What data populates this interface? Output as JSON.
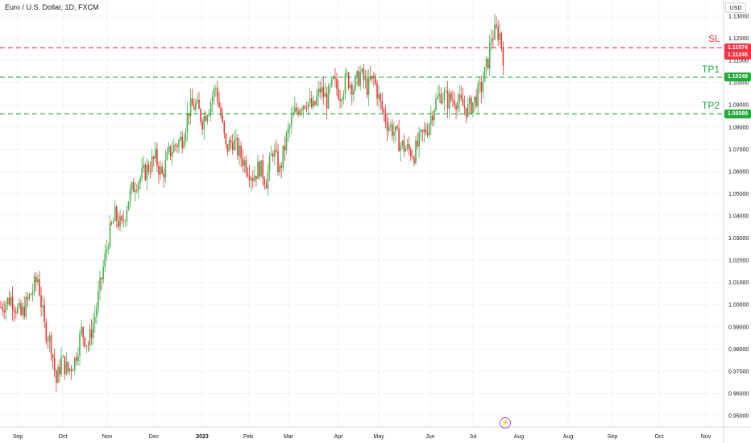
{
  "symbol_title": "Euro / U.S. Dollar, 1D, FXCM",
  "currency": "USD",
  "colors": {
    "up": "#4caf50",
    "down": "#e53935",
    "sl": "#f23645",
    "tp": "#22ab3c",
    "grid": "#f0f3fa",
    "axis_text": "#131722"
  },
  "levels": [
    {
      "name": "SL",
      "price": 1.11574,
      "badge": "1.11574",
      "color": "#f23645"
    },
    {
      "name": "TP1",
      "price": 1.10249,
      "badge": "1.10249",
      "color": "#22ab3c"
    },
    {
      "name": "TP2",
      "price": 1.08598,
      "badge": "1.08598",
      "color": "#22ab3c"
    }
  ],
  "last_price": {
    "value": 1.11245,
    "badge": "1.11245"
  },
  "bolt_icon": "lightning-icon",
  "chart_data": {
    "type": "candlestick",
    "title": "Euro / U.S. Dollar, 1D, FXCM",
    "x_ticks": [
      "Sep",
      "Oct",
      "Nov",
      "Dec",
      "2023",
      "Feb",
      "Mar",
      "Apr",
      "May",
      "Jun",
      "Jul",
      "Aug",
      "Sep",
      "Oct",
      "Nov",
      "Dec"
    ],
    "y_ticks": [
      "1.13000",
      "1.12000",
      "1.11000",
      "1.10000",
      "1.09000",
      "1.08000",
      "1.07000",
      "1.06000",
      "1.05000",
      "1.04000",
      "1.03000",
      "1.02000",
      "1.01000",
      "1.00000",
      "0.99000",
      "0.98000",
      "0.97000",
      "0.96000",
      "0.95000"
    ],
    "ylim": [
      0.945,
      1.135
    ],
    "path": [
      [
        0,
        0.999
      ],
      [
        6,
        1.003
      ],
      [
        12,
        0.995
      ],
      [
        18,
        1.005
      ],
      [
        22,
        1.012
      ],
      [
        26,
        0.99
      ],
      [
        30,
        0.982
      ],
      [
        33,
        0.965
      ],
      [
        36,
        0.975
      ],
      [
        40,
        0.97
      ],
      [
        44,
        0.975
      ],
      [
        48,
        0.988
      ],
      [
        52,
        0.982
      ],
      [
        56,
        0.995
      ],
      [
        60,
        1.012
      ],
      [
        64,
        1.03
      ],
      [
        68,
        1.04
      ],
      [
        72,
        1.035
      ],
      [
        76,
        1.048
      ],
      [
        80,
        1.055
      ],
      [
        84,
        1.058
      ],
      [
        88,
        1.062
      ],
      [
        92,
        1.066
      ],
      [
        96,
        1.058
      ],
      [
        100,
        1.068
      ],
      [
        104,
        1.072
      ],
      [
        108,
        1.075
      ],
      [
        112,
        1.088
      ],
      [
        116,
        1.09
      ],
      [
        120,
        1.083
      ],
      [
        124,
        1.09
      ],
      [
        128,
        1.098
      ],
      [
        131,
        1.085
      ],
      [
        134,
        1.07
      ],
      [
        138,
        1.074
      ],
      [
        142,
        1.068
      ],
      [
        146,
        1.063
      ],
      [
        150,
        1.058
      ],
      [
        154,
        1.062
      ],
      [
        158,
        1.056
      ],
      [
        162,
        1.07
      ],
      [
        166,
        1.06
      ],
      [
        170,
        1.075
      ],
      [
        174,
        1.085
      ],
      [
        178,
        1.09
      ],
      [
        182,
        1.092
      ],
      [
        186,
        1.088
      ],
      [
        190,
        1.097
      ],
      [
        194,
        1.092
      ],
      [
        198,
        1.1
      ],
      [
        202,
        1.095
      ],
      [
        206,
        1.102
      ],
      [
        210,
        1.098
      ],
      [
        214,
        1.104
      ],
      [
        218,
        1.098
      ],
      [
        222,
        1.102
      ],
      [
        226,
        1.09
      ],
      [
        230,
        1.082
      ],
      [
        234,
        1.078
      ],
      [
        238,
        1.072
      ],
      [
        242,
        1.07
      ],
      [
        246,
        1.068
      ],
      [
        250,
        1.075
      ],
      [
        254,
        1.08
      ],
      [
        258,
        1.09
      ],
      [
        262,
        1.095
      ],
      [
        266,
        1.092
      ],
      [
        270,
        1.093
      ],
      [
        274,
        1.09
      ],
      [
        278,
        1.088
      ],
      [
        282,
        1.092
      ],
      [
        286,
        1.098
      ],
      [
        290,
        1.11
      ],
      [
        292,
        1.121
      ],
      [
        295,
        1.123
      ],
      [
        297,
        1.122
      ],
      [
        299,
        1.112
      ]
    ]
  }
}
